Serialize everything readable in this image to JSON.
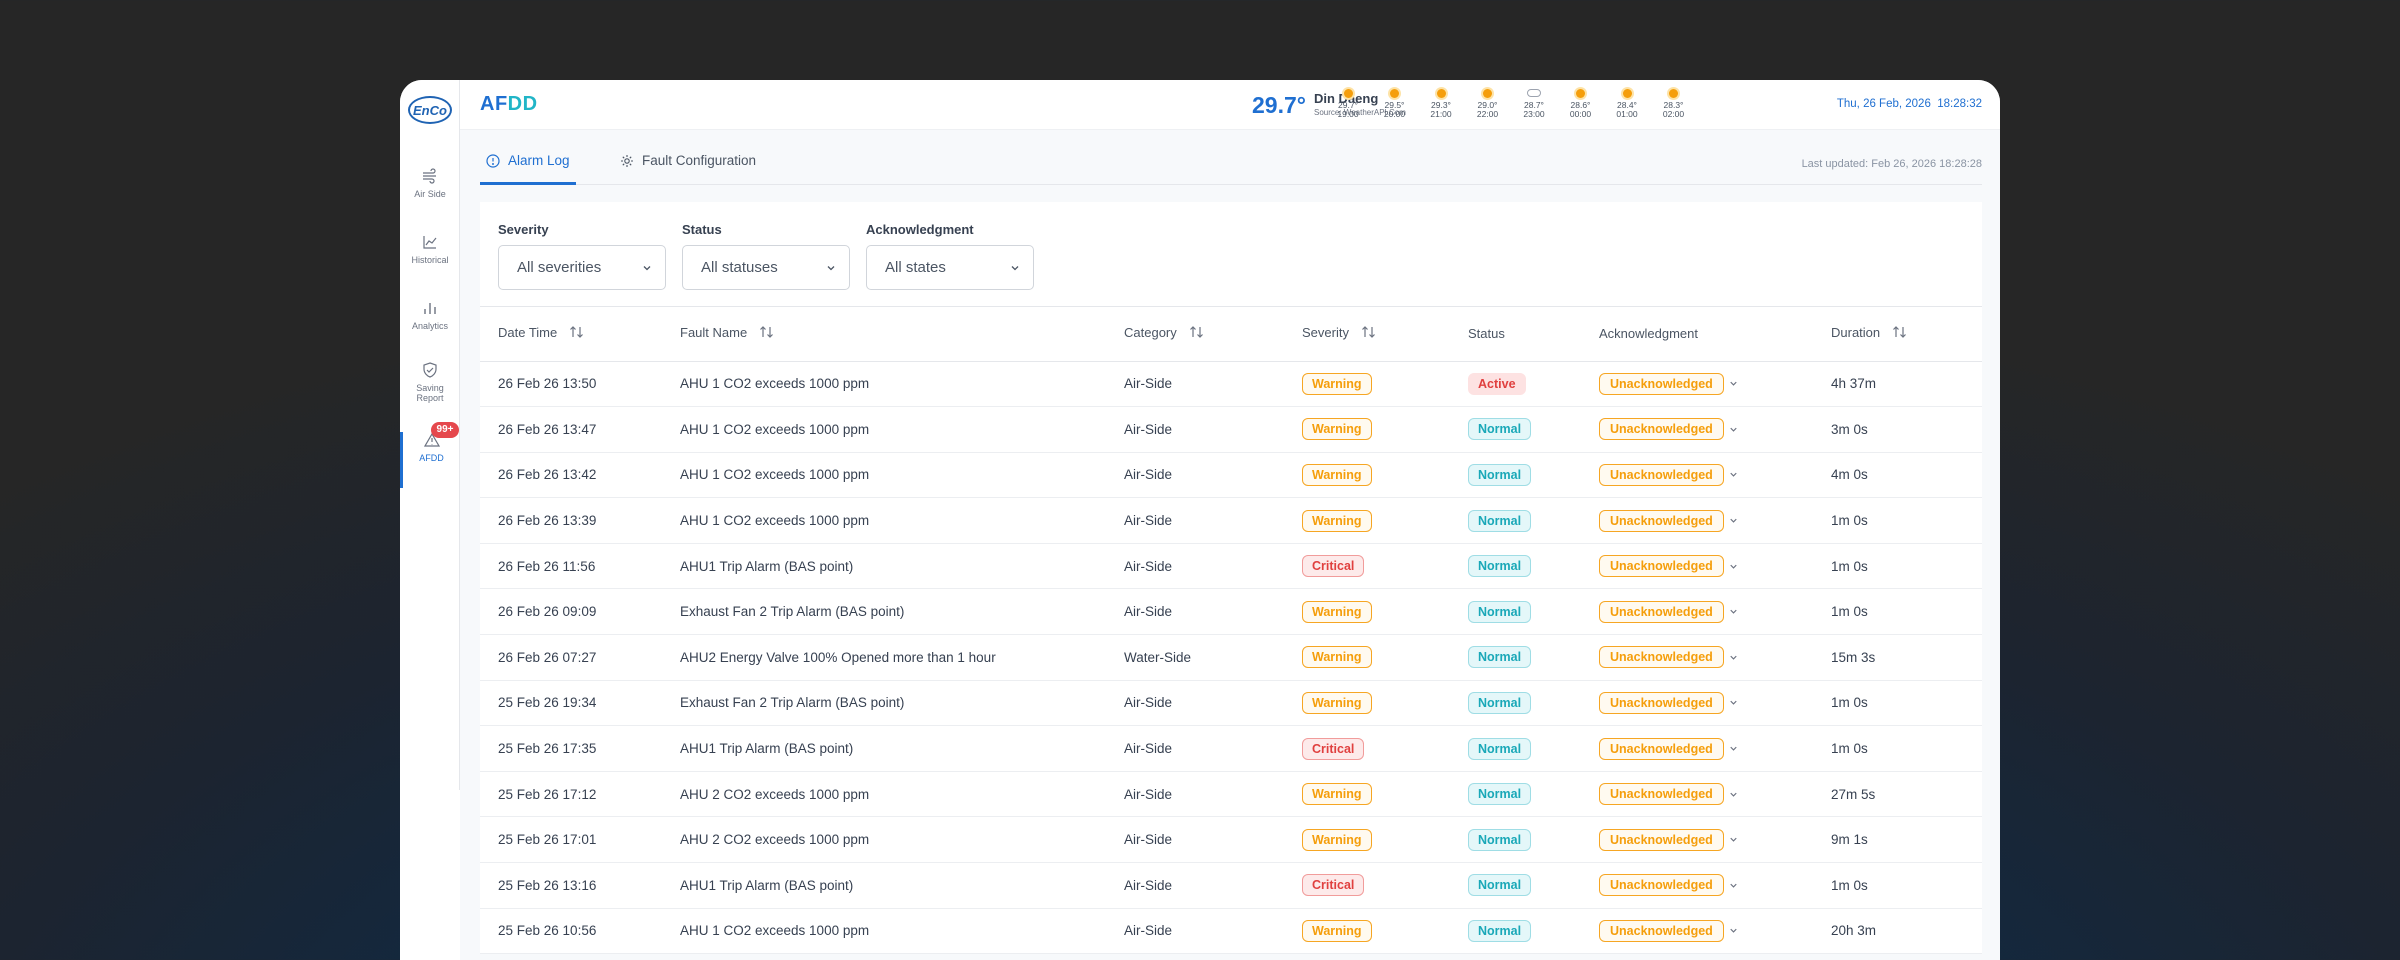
{
  "app": {
    "logo_text": "EnCo",
    "title_a": "AF",
    "title_b": "DD"
  },
  "sidebar": {
    "items": [
      {
        "label": "Air Side",
        "icon": "air-side-icon"
      },
      {
        "label": "Historical",
        "icon": "line-chart-icon"
      },
      {
        "label": "Analytics",
        "icon": "bar-chart-icon"
      },
      {
        "label": "Saving Report",
        "icon": "shield-check-icon"
      },
      {
        "label": "AFDD",
        "icon": "warning-triangle-icon",
        "badge": "99+"
      }
    ]
  },
  "weather": {
    "temp": "29.7°",
    "city": "Din Daeng",
    "source": "Source: WeatherAPI.Com",
    "forecast": [
      {
        "temp": "29.7°",
        "time": "19:00",
        "icon": "sun"
      },
      {
        "temp": "29.5°",
        "time": "20:00",
        "icon": "sun"
      },
      {
        "temp": "29.3°",
        "time": "21:00",
        "icon": "sun"
      },
      {
        "temp": "29.0°",
        "time": "22:00",
        "icon": "sun"
      },
      {
        "temp": "28.7°",
        "time": "23:00",
        "icon": "cloud"
      },
      {
        "temp": "28.6°",
        "time": "00:00",
        "icon": "sun"
      },
      {
        "temp": "28.4°",
        "time": "01:00",
        "icon": "sun"
      },
      {
        "temp": "28.3°",
        "time": "02:00",
        "icon": "sun"
      }
    ]
  },
  "header": {
    "date": "Thu, 26 Feb, 2026",
    "time": "18:28:32"
  },
  "tabs": [
    {
      "label": "Alarm Log",
      "active": true
    },
    {
      "label": "Fault Configuration",
      "active": false
    }
  ],
  "last_updated": "Last updated: Feb 26, 2026 18:28:28",
  "filters": [
    {
      "label": "Severity",
      "value": "All severities"
    },
    {
      "label": "Status",
      "value": "All statuses"
    },
    {
      "label": "Acknowledgment",
      "value": "All states"
    }
  ],
  "table": {
    "columns": [
      "Date Time",
      "Fault Name",
      "Category",
      "Severity",
      "Status",
      "Acknowledgment",
      "Duration"
    ],
    "rows": [
      {
        "datetime": "26 Feb 26 13:50",
        "fault": "AHU 1 CO2 exceeds 1000 ppm",
        "category": "Air-Side",
        "severity": "Warning",
        "status": "Active",
        "ack": "Unacknowledged",
        "duration": "4h 37m"
      },
      {
        "datetime": "26 Feb 26 13:47",
        "fault": "AHU 1 CO2 exceeds 1000 ppm",
        "category": "Air-Side",
        "severity": "Warning",
        "status": "Normal",
        "ack": "Unacknowledged",
        "duration": "3m 0s"
      },
      {
        "datetime": "26 Feb 26 13:42",
        "fault": "AHU 1 CO2 exceeds 1000 ppm",
        "category": "Air-Side",
        "severity": "Warning",
        "status": "Normal",
        "ack": "Unacknowledged",
        "duration": "4m 0s"
      },
      {
        "datetime": "26 Feb 26 13:39",
        "fault": "AHU 1 CO2 exceeds 1000 ppm",
        "category": "Air-Side",
        "severity": "Warning",
        "status": "Normal",
        "ack": "Unacknowledged",
        "duration": "1m 0s"
      },
      {
        "datetime": "26 Feb 26 11:56",
        "fault": "AHU1 Trip Alarm (BAS point)",
        "category": "Air-Side",
        "severity": "Critical",
        "status": "Normal",
        "ack": "Unacknowledged",
        "duration": "1m 0s"
      },
      {
        "datetime": "26 Feb 26 09:09",
        "fault": "Exhaust Fan 2 Trip Alarm (BAS point)",
        "category": "Air-Side",
        "severity": "Warning",
        "status": "Normal",
        "ack": "Unacknowledged",
        "duration": "1m 0s"
      },
      {
        "datetime": "26 Feb 26 07:27",
        "fault": "AHU2 Energy Valve 100% Opened more than 1 hour",
        "category": "Water-Side",
        "severity": "Warning",
        "status": "Normal",
        "ack": "Unacknowledged",
        "duration": "15m 3s"
      },
      {
        "datetime": "25 Feb 26 19:34",
        "fault": "Exhaust Fan 2 Trip Alarm (BAS point)",
        "category": "Air-Side",
        "severity": "Warning",
        "status": "Normal",
        "ack": "Unacknowledged",
        "duration": "1m 0s"
      },
      {
        "datetime": "25 Feb 26 17:35",
        "fault": "AHU1 Trip Alarm (BAS point)",
        "category": "Air-Side",
        "severity": "Critical",
        "status": "Normal",
        "ack": "Unacknowledged",
        "duration": "1m 0s"
      },
      {
        "datetime": "25 Feb 26 17:12",
        "fault": "AHU 2 CO2 exceeds 1000 ppm",
        "category": "Air-Side",
        "severity": "Warning",
        "status": "Normal",
        "ack": "Unacknowledged",
        "duration": "27m 5s"
      },
      {
        "datetime": "25 Feb 26 17:01",
        "fault": "AHU 2 CO2 exceeds 1000 ppm",
        "category": "Air-Side",
        "severity": "Warning",
        "status": "Normal",
        "ack": "Unacknowledged",
        "duration": "9m 1s"
      },
      {
        "datetime": "25 Feb 26 13:16",
        "fault": "AHU1 Trip Alarm (BAS point)",
        "category": "Air-Side",
        "severity": "Critical",
        "status": "Normal",
        "ack": "Unacknowledged",
        "duration": "1m 0s"
      },
      {
        "datetime": "25 Feb 26 10:56",
        "fault": "AHU 1 CO2 exceeds 1000 ppm",
        "category": "Air-Side",
        "severity": "Warning",
        "status": "Normal",
        "ack": "Unacknowledged",
        "duration": "20h 3m"
      }
    ]
  }
}
